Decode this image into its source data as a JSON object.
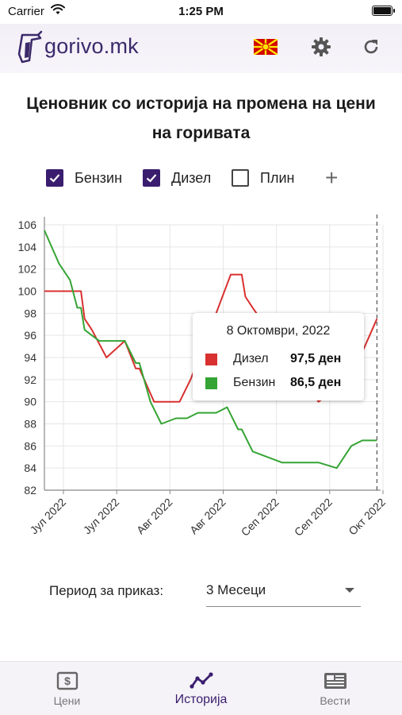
{
  "status_bar": {
    "carrier": "Carrier",
    "time": "1:25 PM"
  },
  "app_bar": {
    "logo_text": "gorivo.mk",
    "icons": [
      "fuel-pump-logo",
      "macedonian-flag",
      "gear",
      "refresh"
    ]
  },
  "page": {
    "title": "Ценовник со историја на промена на цени на горивата"
  },
  "series_toggles": [
    {
      "label": "Бензин",
      "checked": true
    },
    {
      "label": "Дизел",
      "checked": true
    },
    {
      "label": "Плин",
      "checked": false
    }
  ],
  "chart_data": {
    "type": "line",
    "ylim": [
      82,
      106
    ],
    "y_ticks": [
      82,
      84,
      86,
      88,
      90,
      92,
      94,
      96,
      98,
      100,
      102,
      104,
      106
    ],
    "x_tick_labels": [
      "Јул 2022",
      "Јул 2022",
      "Авг 2022",
      "Авг 2022",
      "Сеп 2022",
      "Сеп 2022",
      "Окт 2022"
    ],
    "x_days": [
      0,
      1,
      2,
      3,
      4,
      5,
      6,
      7,
      8,
      9,
      10,
      11,
      12,
      13,
      14,
      15,
      16,
      17,
      18,
      19,
      20,
      21,
      22,
      23,
      24,
      25,
      26,
      27,
      28,
      29,
      30,
      31,
      32,
      33,
      34,
      35,
      36,
      37,
      38,
      39,
      40,
      41,
      42,
      43,
      44,
      45,
      46,
      47,
      48,
      49,
      50,
      51,
      52,
      53,
      54,
      55,
      56,
      57,
      58,
      59,
      60,
      61,
      62,
      63,
      64,
      65,
      66,
      67,
      68,
      69,
      70,
      71,
      72,
      73,
      74,
      75,
      76,
      77,
      78,
      79,
      80,
      81,
      82,
      83,
      84,
      85,
      86,
      87,
      88,
      89,
      90,
      91,
      92
    ],
    "series": [
      {
        "name": "Дизел",
        "color": "#d93030",
        "points": [
          [
            0,
            100
          ],
          [
            10,
            100
          ],
          [
            11,
            97.5
          ],
          [
            13,
            96.5
          ],
          [
            17,
            94
          ],
          [
            22,
            95.5
          ],
          [
            25,
            93
          ],
          [
            26,
            93
          ],
          [
            30,
            90
          ],
          [
            37,
            90
          ],
          [
            40,
            92
          ],
          [
            47,
            98
          ],
          [
            51,
            101.5
          ],
          [
            54,
            101.5
          ],
          [
            55,
            99.5
          ],
          [
            57,
            98.5
          ],
          [
            75,
            90
          ],
          [
            77,
            90.5
          ],
          [
            80,
            91.5
          ],
          [
            87,
            94.5
          ],
          [
            91,
            97.5
          ]
        ]
      },
      {
        "name": "Бензин",
        "color": "#35a435",
        "points": [
          [
            0,
            105.5
          ],
          [
            4,
            102.5
          ],
          [
            7,
            101
          ],
          [
            9,
            98.5
          ],
          [
            10,
            98.5
          ],
          [
            11,
            96.5
          ],
          [
            15,
            95.5
          ],
          [
            22,
            95.5
          ],
          [
            25,
            93.5
          ],
          [
            26,
            93.5
          ],
          [
            29,
            90
          ],
          [
            32,
            88
          ],
          [
            36,
            88.5
          ],
          [
            39,
            88.5
          ],
          [
            42,
            89
          ],
          [
            47,
            89
          ],
          [
            50,
            89.5
          ],
          [
            53,
            87.5
          ],
          [
            54,
            87.5
          ],
          [
            57,
            85.5
          ],
          [
            65,
            84.5
          ],
          [
            75,
            84.5
          ],
          [
            80,
            84
          ],
          [
            84,
            86
          ],
          [
            87,
            86.5
          ],
          [
            91,
            86.5
          ]
        ]
      }
    ],
    "crosshair_day": 91,
    "tooltip": {
      "date": "8 Октомври, 2022",
      "rows": [
        {
          "name": "Дизел",
          "value": "97,5 ден",
          "color": "#d93030"
        },
        {
          "name": "Бензин",
          "value": "86,5 ден",
          "color": "#35a435"
        }
      ]
    }
  },
  "period": {
    "label": "Период за приказ:",
    "value": "3 Месеци"
  },
  "bottom_nav": [
    {
      "label": "Цени",
      "icon": "price-tag-icon",
      "active": false
    },
    {
      "label": "Историја",
      "icon": "trend-line-icon",
      "active": true
    },
    {
      "label": "Вести",
      "icon": "news-icon",
      "active": false
    }
  ],
  "colors": {
    "primary": "#3a1d6e",
    "diesel": "#d93030",
    "petrol": "#35a435"
  }
}
